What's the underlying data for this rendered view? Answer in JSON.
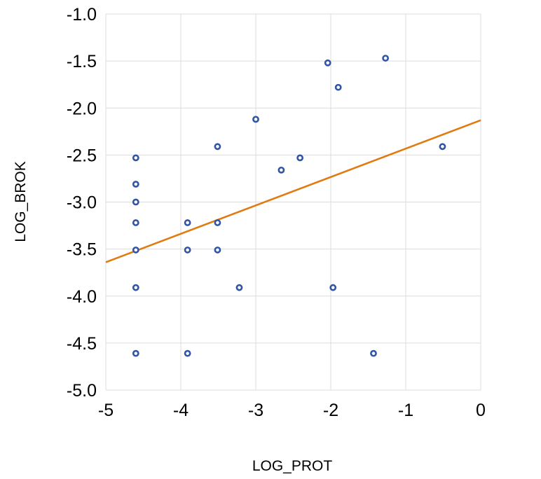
{
  "chart_data": {
    "type": "scatter",
    "title": "",
    "xlabel": "LOG_PROT",
    "ylabel": "LOG_BROK",
    "xlim": [
      -5,
      0
    ],
    "ylim": [
      -5,
      -1
    ],
    "x_ticks": [
      -5,
      -4,
      -3,
      -2,
      -1,
      0
    ],
    "x_tick_labels": [
      "-5",
      "-4",
      "-3",
      "-2",
      "-1",
      "0"
    ],
    "y_ticks": [
      -1,
      -1.5,
      -2,
      -2.5,
      -3,
      -3.5,
      -4,
      -4.5,
      -5
    ],
    "y_tick_labels": [
      "-1.0",
      "-1.5",
      "-2.0",
      "-2.5",
      "-3.0",
      "-3.5",
      "-4.0",
      "-4.5",
      "-5.0"
    ],
    "grid": true,
    "series": [
      {
        "name": "LOG_BROK",
        "marker": "circle",
        "color": "#2f55a4",
        "points": [
          {
            "x": -4.6,
            "y": -2.53
          },
          {
            "x": -4.6,
            "y": -2.81
          },
          {
            "x": -4.6,
            "y": -3.0
          },
          {
            "x": -4.6,
            "y": -3.22
          },
          {
            "x": -4.6,
            "y": -3.51
          },
          {
            "x": -4.6,
            "y": -3.91
          },
          {
            "x": -4.6,
            "y": -4.61
          },
          {
            "x": -3.91,
            "y": -3.22
          },
          {
            "x": -3.91,
            "y": -3.51
          },
          {
            "x": -3.91,
            "y": -4.61
          },
          {
            "x": -3.51,
            "y": -2.41
          },
          {
            "x": -3.51,
            "y": -3.22
          },
          {
            "x": -3.51,
            "y": -3.51
          },
          {
            "x": -3.22,
            "y": -3.91
          },
          {
            "x": -3.0,
            "y": -2.12
          },
          {
            "x": -2.66,
            "y": -2.66
          },
          {
            "x": -2.41,
            "y": -2.53
          },
          {
            "x": -2.04,
            "y": -1.52
          },
          {
            "x": -1.97,
            "y": -3.91
          },
          {
            "x": -1.9,
            "y": -1.78
          },
          {
            "x": -1.43,
            "y": -4.61
          },
          {
            "x": -1.27,
            "y": -1.47
          },
          {
            "x": -0.51,
            "y": -2.41
          }
        ]
      }
    ],
    "trendline": {
      "type": "linear",
      "color": "#e07b12",
      "x_start": -5,
      "y_start": -3.64,
      "x_end": 0,
      "y_end": -2.13
    }
  }
}
